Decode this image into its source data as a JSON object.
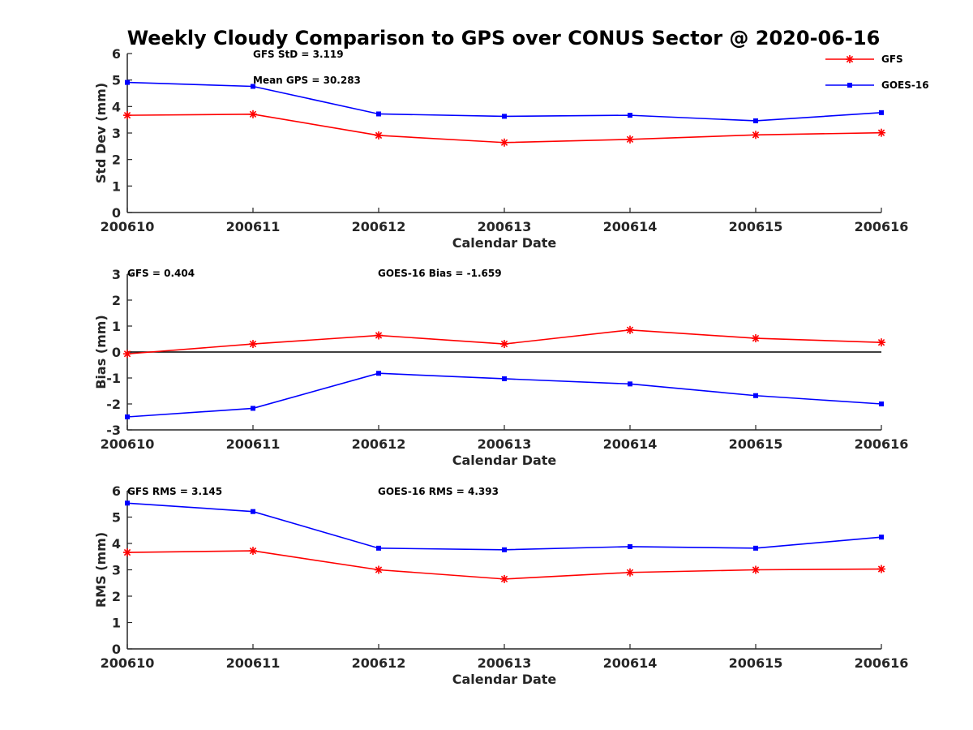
{
  "title": "Weekly Cloudy Comparison to GPS over CONUS Sector @ 2020-06-16",
  "legend": {
    "placement": "top-right",
    "entries": [
      "GFS",
      "GOES-16"
    ]
  },
  "colors": {
    "GFS": "#ff0000",
    "GOES-16": "#0000ff",
    "axis": "#262626",
    "zero_line": "#000000"
  },
  "chart_data": [
    {
      "type": "line",
      "xlabel": "Calendar Date",
      "ylabel": "Std Dev (mm)",
      "categories": [
        "200610",
        "200611",
        "200612",
        "200613",
        "200614",
        "200615",
        "200616"
      ],
      "ylim": [
        0,
        6
      ],
      "yticks": [
        "0",
        "1",
        "2",
        "3",
        "4",
        "5",
        "6"
      ],
      "grid": false,
      "annotations": [
        "GFS StD = 3.119",
        "Mean GPS = 30.283"
      ],
      "series": [
        {
          "name": "GFS",
          "marker": "asterisk",
          "values": [
            3.67,
            3.71,
            2.91,
            2.64,
            2.76,
            2.93,
            3.01
          ]
        },
        {
          "name": "GOES-16",
          "marker": "square",
          "values": [
            4.91,
            4.76,
            3.72,
            3.63,
            3.67,
            3.46,
            3.77
          ]
        }
      ]
    },
    {
      "type": "line",
      "xlabel": "Calendar Date",
      "ylabel": "Bias (mm)",
      "categories": [
        "200610",
        "200611",
        "200612",
        "200613",
        "200614",
        "200615",
        "200616"
      ],
      "ylim": [
        -3,
        3
      ],
      "yticks": [
        "-3",
        "-2",
        "-1",
        "0",
        "1",
        "2",
        "3"
      ],
      "grid": false,
      "zero_line": true,
      "annotations": [
        "GFS = 0.404",
        "GOES-16 Bias  = -1.659"
      ],
      "series": [
        {
          "name": "GFS",
          "marker": "asterisk",
          "values": [
            -0.07,
            0.31,
            0.64,
            0.31,
            0.85,
            0.53,
            0.37
          ]
        },
        {
          "name": "GOES-16",
          "marker": "square",
          "values": [
            -2.5,
            -2.17,
            -0.82,
            -1.03,
            -1.23,
            -1.68,
            -2.0
          ]
        }
      ]
    },
    {
      "type": "line",
      "xlabel": "Calendar Date",
      "ylabel": "RMS (mm)",
      "categories": [
        "200610",
        "200611",
        "200612",
        "200613",
        "200614",
        "200615",
        "200616"
      ],
      "ylim": [
        0,
        6
      ],
      "yticks": [
        "0",
        "1",
        "2",
        "3",
        "4",
        "5",
        "6"
      ],
      "grid": false,
      "annotations": [
        "GFS RMS = 3.145",
        "GOES-16 RMS = 4.393"
      ],
      "series": [
        {
          "name": "GFS",
          "marker": "asterisk",
          "values": [
            3.66,
            3.72,
            3.0,
            2.65,
            2.9,
            3.0,
            3.03
          ]
        },
        {
          "name": "GOES-16",
          "marker": "square",
          "values": [
            5.53,
            5.21,
            3.82,
            3.76,
            3.88,
            3.82,
            4.24
          ]
        }
      ]
    }
  ]
}
